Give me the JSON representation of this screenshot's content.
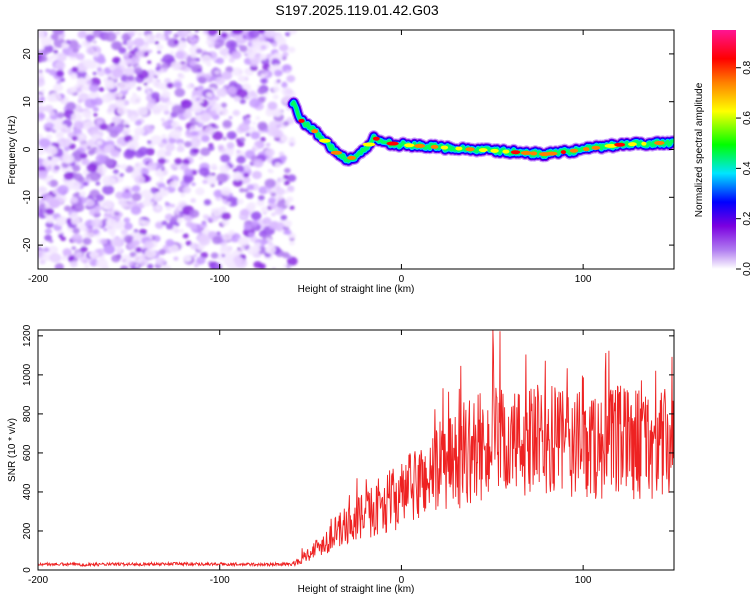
{
  "title": "S197.2025.119.01.42.G03",
  "chart_data": [
    {
      "type": "heatmap",
      "xlabel": "Height of straight line (km)",
      "ylabel": "Frequency (Hz)",
      "xlim": [
        -200,
        150
      ],
      "ylim": [
        -25,
        25
      ],
      "xticks": [
        -200,
        -100,
        0,
        100
      ],
      "yticks": [
        -20,
        -10,
        0,
        10,
        20
      ],
      "colorbar": {
        "label": "Normalized spectral amplitude",
        "range": [
          0,
          0.95
        ],
        "ticks": [
          0,
          0.2,
          0.4,
          0.6,
          0.8
        ],
        "colormap": [
          "#ffffff",
          "#8a2be2",
          "#0000ff",
          "#00e5ff",
          "#00ff00",
          "#ffff00",
          "#ff8000",
          "#ff0000",
          "#ff1493"
        ]
      },
      "noise_region": {
        "x": [
          -200,
          -60
        ],
        "freq": [
          -25,
          25
        ],
        "amplitude": [
          0.0,
          0.15
        ]
      },
      "signal_ridge": [
        {
          "x": -60,
          "freq": 10
        },
        {
          "x": -55,
          "freq": 6
        },
        {
          "x": -50,
          "freq": 4.5
        },
        {
          "x": -45,
          "freq": 3
        },
        {
          "x": -40,
          "freq": 1
        },
        {
          "x": -35,
          "freq": -1
        },
        {
          "x": -30,
          "freq": -2
        },
        {
          "x": -25,
          "freq": -1.5
        },
        {
          "x": -20,
          "freq": 0
        },
        {
          "x": -15,
          "freq": 2.5
        },
        {
          "x": -10,
          "freq": 1.5
        },
        {
          "x": 0,
          "freq": 1
        },
        {
          "x": 20,
          "freq": 0.5
        },
        {
          "x": 40,
          "freq": 0
        },
        {
          "x": 60,
          "freq": -0.5
        },
        {
          "x": 80,
          "freq": -1
        },
        {
          "x": 100,
          "freq": 0
        },
        {
          "x": 120,
          "freq": 1
        },
        {
          "x": 150,
          "freq": 1.5
        }
      ]
    },
    {
      "type": "line",
      "xlabel": "Height of straight line (km)",
      "ylabel": "SNR (10 * v/v)",
      "xlim": [
        -200,
        150
      ],
      "ylim": [
        0,
        1230
      ],
      "xticks": [
        -200,
        -100,
        0,
        100
      ],
      "yticks": [
        0,
        200,
        400,
        600,
        800,
        1000,
        1200
      ],
      "color": "#ee2222",
      "series": [
        {
          "x": [
            -200,
            -175,
            -150,
            -125,
            -100,
            -75,
            -60,
            -50,
            -40,
            -30,
            -20,
            -10,
            0,
            10,
            20,
            30,
            40,
            50,
            60,
            70,
            80,
            90,
            100,
            110,
            120,
            130,
            140,
            150
          ],
          "values": [
            30,
            28,
            30,
            32,
            30,
            28,
            30,
            90,
            160,
            230,
            280,
            340,
            380,
            450,
            510,
            560,
            620,
            650,
            640,
            660,
            650,
            660,
            630,
            640,
            650,
            650,
            640,
            640
          ]
        }
      ]
    }
  ]
}
